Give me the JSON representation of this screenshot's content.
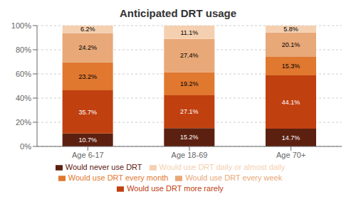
{
  "chart_data": {
    "type": "bar",
    "title": "Anticipated DRT usage",
    "categories": [
      "Age 6-17",
      "Age 18-69",
      "Age 70+"
    ],
    "series": [
      {
        "name": "Would never use DRT",
        "color": "#5C2010",
        "values": [
          10.7,
          15.2,
          14.7
        ],
        "value_labels": [
          "10.7%",
          "15.2%",
          "14.7%"
        ]
      },
      {
        "name": "Would use DRT more rarely",
        "color": "#C04010",
        "values": [
          35.7,
          27.1,
          44.1
        ],
        "value_labels": [
          "35.7%",
          "27.1%",
          "44.1%"
        ]
      },
      {
        "name": "Would use DRT every month",
        "color": "#E07830",
        "values": [
          23.2,
          19.2,
          15.3
        ],
        "value_labels": [
          "23.2%",
          "19.2%",
          "15.3%"
        ]
      },
      {
        "name": "Would use DRT every week",
        "color": "#E8A878",
        "values": [
          24.2,
          27.4,
          20.1
        ],
        "value_labels": [
          "24.2%",
          "27.4%",
          "20.1%"
        ]
      },
      {
        "name": "Would use DRT daily or almost daily",
        "color": "#F5D0B0",
        "values": [
          6.2,
          11.1,
          5.8
        ],
        "value_labels": [
          "6.2%",
          "11.1%",
          "5.8%"
        ]
      }
    ],
    "stacked": true,
    "data_labels": true,
    "ylim": [
      0,
      100
    ],
    "yticks": [
      {
        "value": 0,
        "label": "0%"
      },
      {
        "value": 20,
        "label": "20%"
      },
      {
        "value": 40,
        "label": "40%"
      },
      {
        "value": 60,
        "label": "60%"
      },
      {
        "value": 80,
        "label": "80%"
      },
      {
        "value": 100,
        "label": "100%"
      }
    ],
    "grid": true,
    "legend": "bottom"
  }
}
